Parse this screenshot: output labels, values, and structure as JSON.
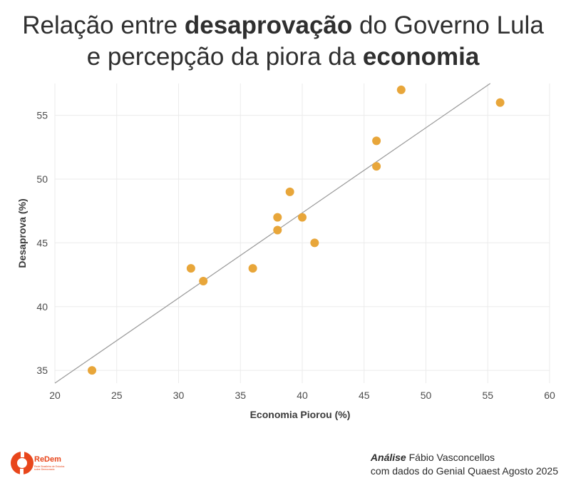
{
  "header": {
    "line1_pre": "Relação entre ",
    "line1_bold": "desaprovação",
    "line1_post": " do Governo Lula",
    "line2_pre": "e percepção da piora da ",
    "line2_bold": "economia"
  },
  "chart_data": {
    "type": "scatter",
    "title": "Relação entre desaprovação do Governo Lula e percepção da piora da economia",
    "xlabel": "Economia Piorou (%)",
    "ylabel": "Desaprova (%)",
    "xlim": [
      20,
      60
    ],
    "ylim": [
      34,
      57.5
    ],
    "xticks": [
      20,
      25,
      30,
      35,
      40,
      45,
      50,
      55,
      60
    ],
    "yticks": [
      35,
      40,
      45,
      50,
      55
    ],
    "grid": true,
    "point_color": "#E8A63A",
    "trend_color": "#999999",
    "points": [
      {
        "x": 23,
        "y": 35
      },
      {
        "x": 31,
        "y": 43
      },
      {
        "x": 32,
        "y": 42
      },
      {
        "x": 36,
        "y": 43
      },
      {
        "x": 38,
        "y": 47
      },
      {
        "x": 38,
        "y": 46
      },
      {
        "x": 39,
        "y": 49
      },
      {
        "x": 40,
        "y": 47
      },
      {
        "x": 41,
        "y": 45
      },
      {
        "x": 46,
        "y": 53
      },
      {
        "x": 46,
        "y": 51
      },
      {
        "x": 48,
        "y": 57
      },
      {
        "x": 56,
        "y": 56
      }
    ],
    "trend_line": {
      "x0": 20,
      "y0": 34,
      "x1": 55.2,
      "y1": 57.5
    }
  },
  "brand": {
    "name": "ReDem",
    "tagline": "Rede Brasileira de Estudos sobre Democracia",
    "color": "#E8461B"
  },
  "credit": {
    "label": "Análise",
    "author": " Fábio Vasconcellos",
    "source": "com dados do Genial Quaest Agosto 2025"
  }
}
